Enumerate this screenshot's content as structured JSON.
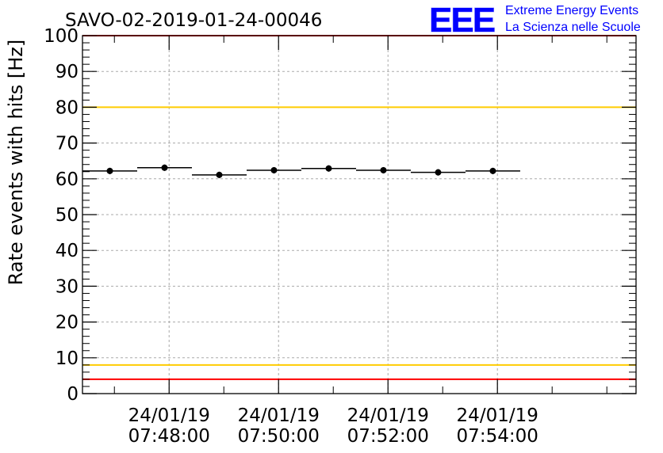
{
  "chart_data": {
    "type": "scatter",
    "title": "SAVO-02-2019-01-24-00046",
    "ylabel": "Rate events with hits [Hz]",
    "xlabel": "",
    "ylim": [
      0,
      100
    ],
    "ytick_values": [
      0,
      10,
      20,
      30,
      40,
      50,
      60,
      70,
      80,
      90,
      100
    ],
    "x_axis_unit": "minutes",
    "xlim": [
      "07:46:25",
      "07:56:32"
    ],
    "xtick_labels": [
      {
        "date": "24/01/19",
        "time": "07:48:00"
      },
      {
        "date": "24/01/19",
        "time": "07:50:00"
      },
      {
        "date": "24/01/19",
        "time": "07:52:00"
      },
      {
        "date": "24/01/19",
        "time": "07:54:00"
      }
    ],
    "points": [
      {
        "x_start": "07:46:25",
        "x_end": "07:47:25",
        "x": "07:46:55",
        "y": 62.2
      },
      {
        "x_start": "07:47:25",
        "x_end": "07:48:25",
        "x": "07:47:55",
        "y": 63.1
      },
      {
        "x_start": "07:48:25",
        "x_end": "07:49:25",
        "x": "07:48:55",
        "y": 61.1
      },
      {
        "x_start": "07:49:25",
        "x_end": "07:50:25",
        "x": "07:49:55",
        "y": 62.4
      },
      {
        "x_start": "07:50:25",
        "x_end": "07:51:25",
        "x": "07:50:55",
        "y": 62.9
      },
      {
        "x_start": "07:51:25",
        "x_end": "07:52:25",
        "x": "07:51:55",
        "y": 62.4
      },
      {
        "x_start": "07:52:25",
        "x_end": "07:53:25",
        "x": "07:52:55",
        "y": 61.8
      },
      {
        "x_start": "07:53:25",
        "x_end": "07:54:25",
        "x": "07:53:55",
        "y": 62.2
      }
    ],
    "reference_lines": [
      {
        "y": 100,
        "color": "#ff0000"
      },
      {
        "y": 80,
        "color": "#ffcc00"
      },
      {
        "y": 8,
        "color": "#ffcc00"
      },
      {
        "y": 4,
        "color": "#ff0000"
      }
    ],
    "grid": true
  },
  "logo": {
    "mark": "EEE",
    "line1": "Extreme Energy Events",
    "line2": "La Scienza nelle Scuole",
    "color": "#0000ff"
  },
  "colors": {
    "axis": "#000000",
    "grid": "#aaaaaa",
    "marker": "#000000"
  }
}
